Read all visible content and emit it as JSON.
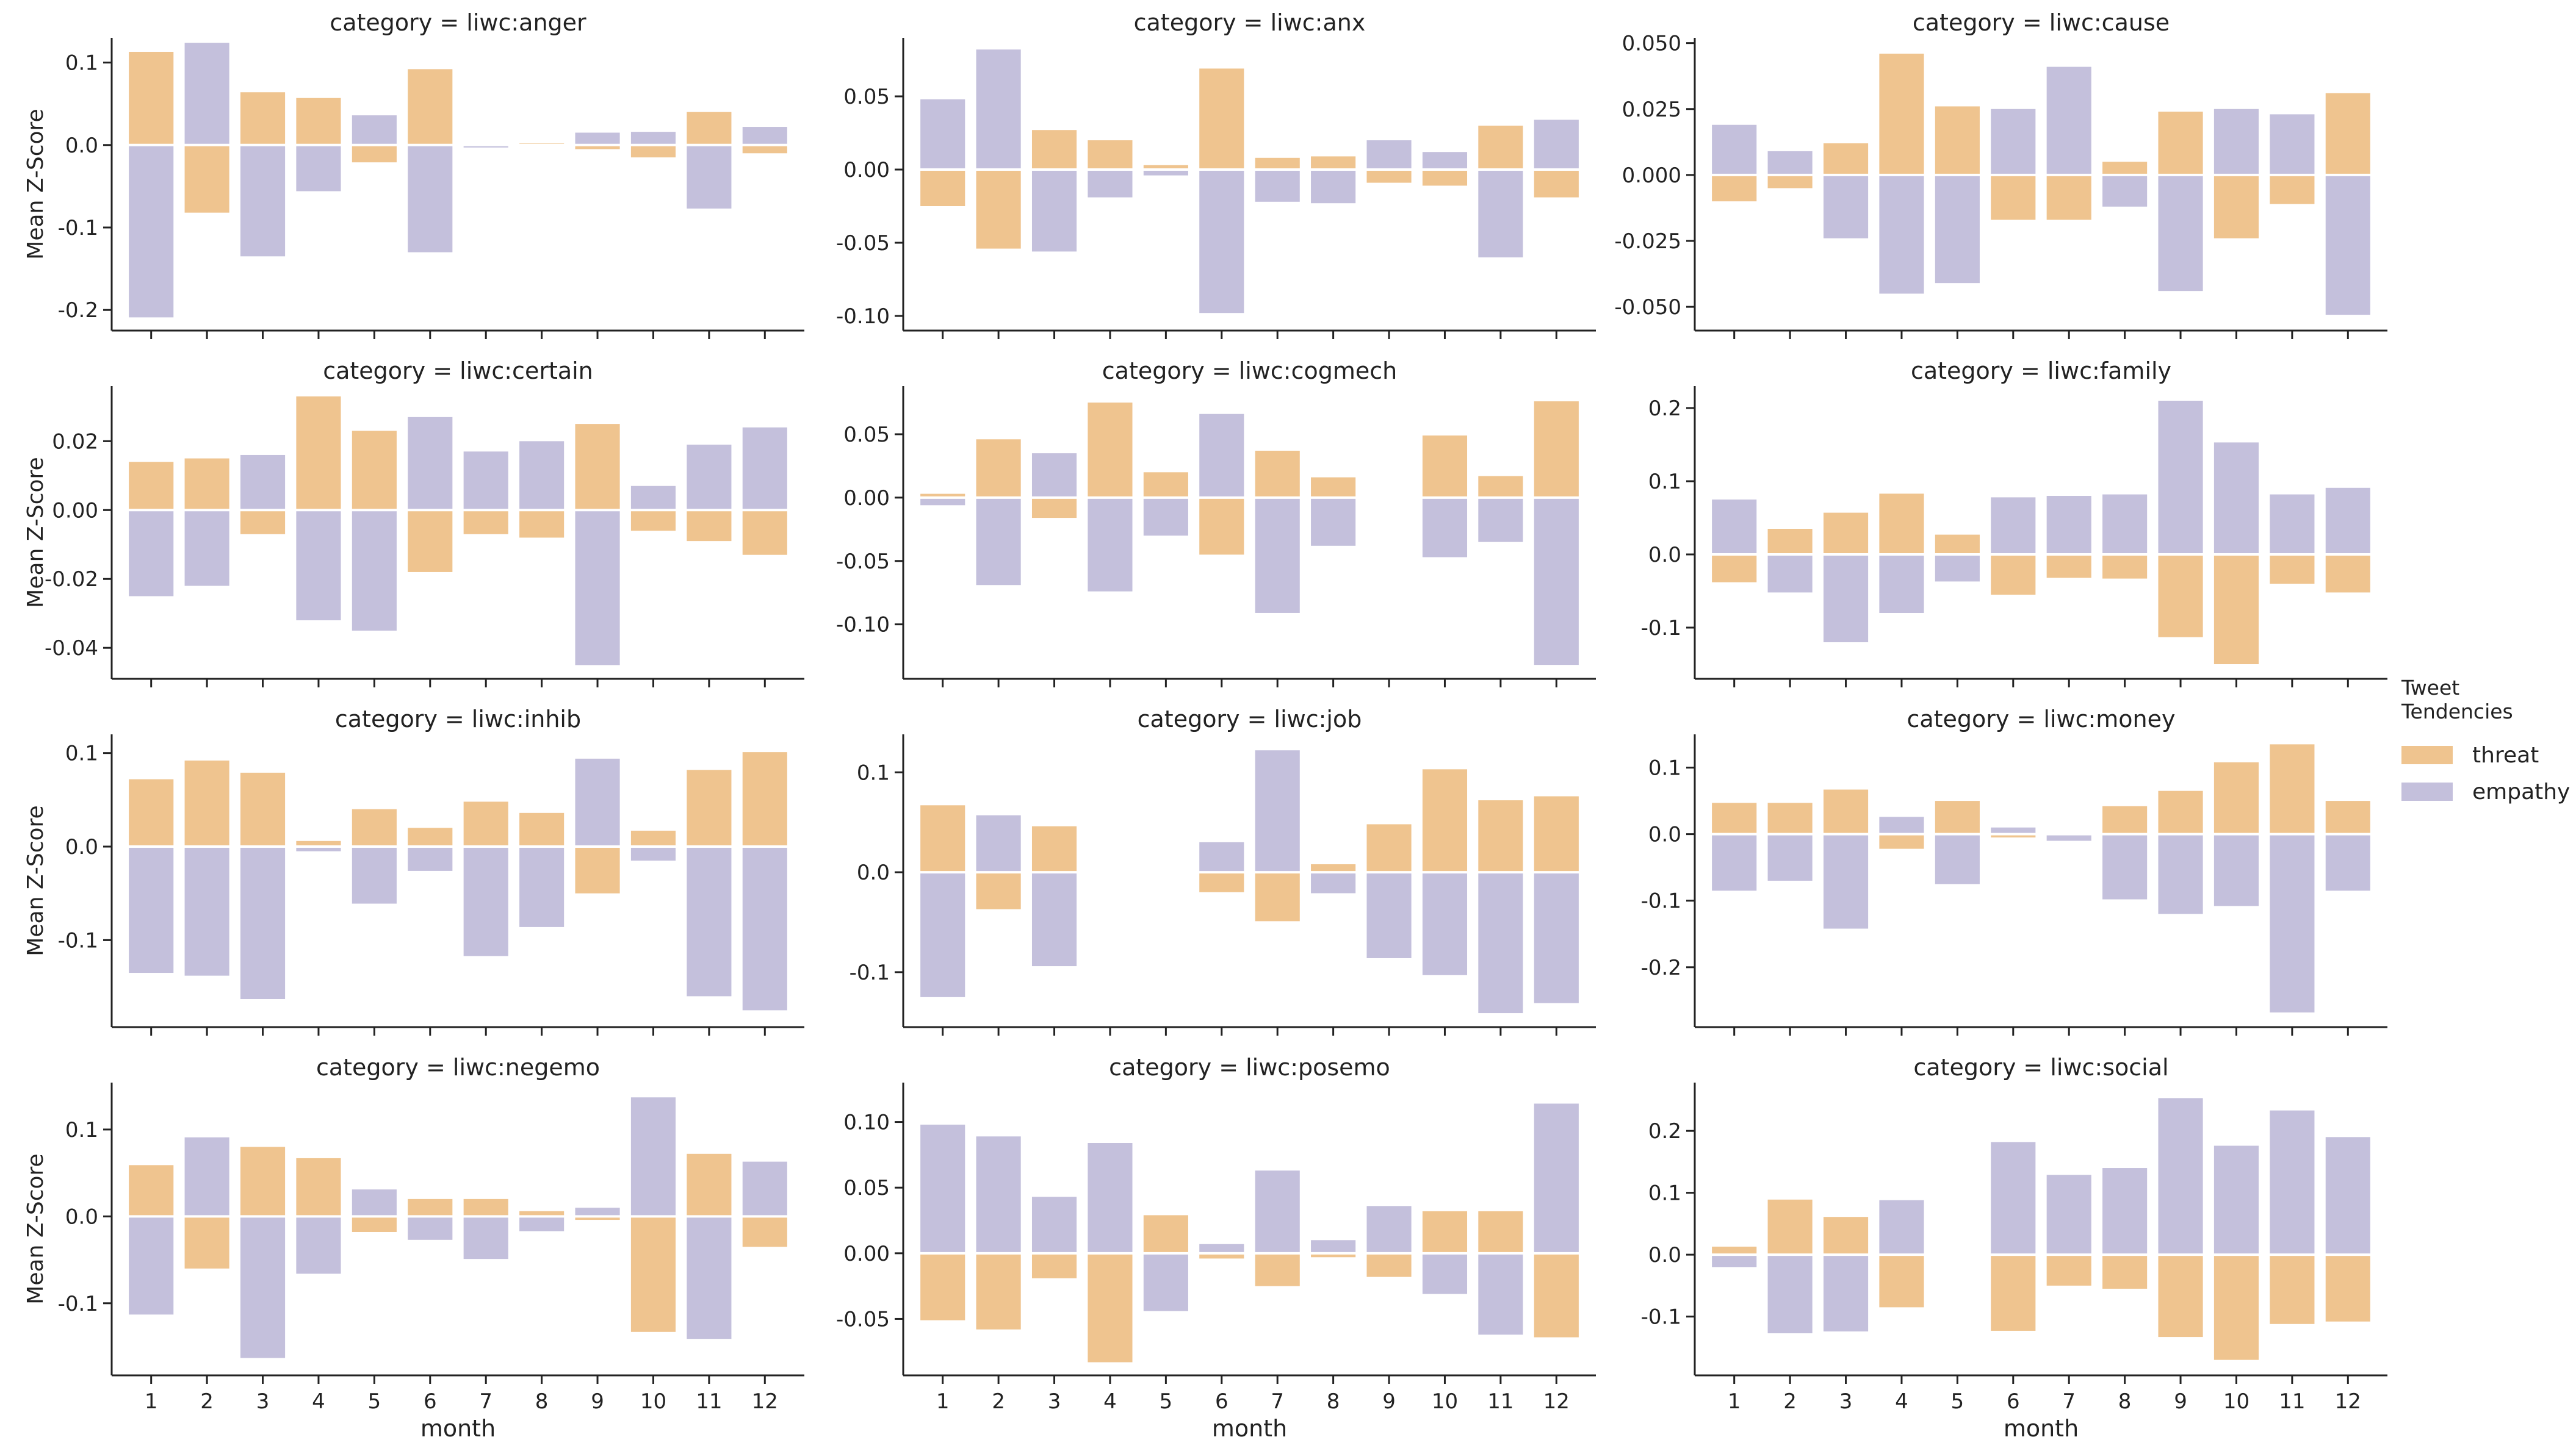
{
  "figure": {
    "ylabel": "Mean Z-Score",
    "xlabel": "month",
    "colors": {
      "threat": "#efc48f",
      "empathy": "#c4c0dc"
    }
  },
  "legend": {
    "title": "Tweet Tendencies",
    "items": [
      {
        "key": "threat",
        "label": "threat"
      },
      {
        "key": "empathy",
        "label": "empathy"
      }
    ]
  },
  "chart_data": [
    {
      "type": "bar",
      "title": "category = liwc:anger",
      "categories": [
        "1",
        "2",
        "3",
        "4",
        "5",
        "6",
        "7",
        "8",
        "9",
        "10",
        "11",
        "12"
      ],
      "ylim": [
        -0.225,
        0.13
      ],
      "yticks": [
        -0.2,
        -0.1,
        0.0,
        0.1
      ],
      "ytick_labels": [
        "-0.2",
        "-0.1",
        "0.0",
        "0.1"
      ],
      "series": [
        {
          "name": "threat",
          "values": [
            0.113,
            -0.082,
            0.064,
            0.057,
            -0.021,
            0.092,
            0,
            0.002,
            -0.005,
            -0.015,
            0.04,
            -0.01
          ]
        },
        {
          "name": "empathy",
          "values": [
            -0.209,
            0.124,
            -0.135,
            -0.056,
            0.036,
            -0.13,
            -0.003,
            0,
            0.015,
            0.016,
            -0.077,
            0.022
          ]
        }
      ]
    },
    {
      "type": "bar",
      "title": "category = liwc:anx",
      "categories": [
        "1",
        "2",
        "3",
        "4",
        "5",
        "6",
        "7",
        "8",
        "9",
        "10",
        "11",
        "12"
      ],
      "ylim": [
        -0.11,
        0.09
      ],
      "yticks": [
        -0.1,
        -0.05,
        0.0,
        0.05
      ],
      "ytick_labels": [
        "-0.10",
        "-0.05",
        "0.00",
        "0.05"
      ],
      "series": [
        {
          "name": "threat",
          "values": [
            -0.025,
            -0.054,
            0.027,
            0.02,
            0.003,
            0.069,
            0.008,
            0.009,
            -0.009,
            -0.011,
            0.03,
            -0.019
          ]
        },
        {
          "name": "empathy",
          "values": [
            0.048,
            0.082,
            -0.056,
            -0.019,
            -0.004,
            -0.098,
            -0.022,
            -0.023,
            0.02,
            0.012,
            -0.06,
            0.034
          ]
        }
      ]
    },
    {
      "type": "bar",
      "title": "category = liwc:cause",
      "categories": [
        "1",
        "2",
        "3",
        "4",
        "5",
        "6",
        "7",
        "8",
        "9",
        "10",
        "11",
        "12"
      ],
      "ylim": [
        -0.059,
        0.052
      ],
      "yticks": [
        -0.05,
        -0.025,
        0.0,
        0.025,
        0.05
      ],
      "ytick_labels": [
        "-0.050",
        "-0.025",
        "0.000",
        "0.025",
        "0.050"
      ],
      "series": [
        {
          "name": "threat",
          "values": [
            -0.01,
            -0.005,
            0.012,
            0.046,
            0.026,
            -0.017,
            -0.017,
            0.005,
            0.024,
            -0.024,
            -0.011,
            0.031
          ]
        },
        {
          "name": "empathy",
          "values": [
            0.019,
            0.009,
            -0.024,
            -0.045,
            -0.041,
            0.025,
            0.041,
            -0.012,
            -0.044,
            0.025,
            0.023,
            -0.053
          ]
        }
      ]
    },
    {
      "type": "bar",
      "title": "category = liwc:certain",
      "categories": [
        "1",
        "2",
        "3",
        "4",
        "5",
        "6",
        "7",
        "8",
        "9",
        "10",
        "11",
        "12"
      ],
      "ylim": [
        -0.049,
        0.036
      ],
      "yticks": [
        -0.04,
        -0.02,
        0.0,
        0.02
      ],
      "ytick_labels": [
        "-0.04",
        "-0.02",
        "0.00",
        "0.02"
      ],
      "series": [
        {
          "name": "threat",
          "values": [
            0.014,
            0.015,
            -0.007,
            0.033,
            0.023,
            -0.018,
            -0.007,
            -0.008,
            0.025,
            -0.006,
            -0.009,
            -0.013
          ]
        },
        {
          "name": "empathy",
          "values": [
            -0.025,
            -0.022,
            0.016,
            -0.032,
            -0.035,
            0.027,
            0.017,
            0.02,
            -0.045,
            0.007,
            0.019,
            0.024
          ]
        }
      ]
    },
    {
      "type": "bar",
      "title": "category = liwc:cogmech",
      "categories": [
        "1",
        "2",
        "3",
        "4",
        "5",
        "6",
        "7",
        "8",
        "9",
        "10",
        "11",
        "12"
      ],
      "ylim": [
        -0.143,
        0.088
      ],
      "yticks": [
        -0.1,
        -0.05,
        0.0,
        0.05
      ],
      "ytick_labels": [
        "-0.10",
        "-0.05",
        "0.00",
        "0.05"
      ],
      "series": [
        {
          "name": "threat",
          "values": [
            0.003,
            0.046,
            -0.016,
            0.075,
            0.02,
            -0.045,
            0.037,
            0.016,
            0,
            0.049,
            0.017,
            0.076
          ]
        },
        {
          "name": "empathy",
          "values": [
            -0.006,
            -0.069,
            0.035,
            -0.074,
            -0.03,
            0.066,
            -0.091,
            -0.038,
            0,
            -0.047,
            -0.035,
            -0.132
          ]
        }
      ]
    },
    {
      "type": "bar",
      "title": "category = liwc:family",
      "categories": [
        "1",
        "2",
        "3",
        "4",
        "5",
        "6",
        "7",
        "8",
        "9",
        "10",
        "11",
        "12"
      ],
      "ylim": [
        -0.17,
        0.23
      ],
      "yticks": [
        -0.1,
        0.0,
        0.1,
        0.2
      ],
      "ytick_labels": [
        "-0.1",
        "0.0",
        "0.1",
        "0.2"
      ],
      "series": [
        {
          "name": "threat",
          "values": [
            -0.038,
            0.035,
            0.057,
            0.083,
            0.027,
            -0.055,
            -0.032,
            -0.033,
            -0.113,
            -0.15,
            -0.04,
            -0.052
          ]
        },
        {
          "name": "empathy",
          "values": [
            0.075,
            -0.052,
            -0.12,
            -0.08,
            -0.037,
            0.078,
            0.08,
            0.082,
            0.21,
            0.153,
            0.082,
            0.091
          ]
        }
      ]
    },
    {
      "type": "bar",
      "title": "category = liwc:inhib",
      "categories": [
        "1",
        "2",
        "3",
        "4",
        "5",
        "6",
        "7",
        "8",
        "9",
        "10",
        "11",
        "12"
      ],
      "ylim": [
        -0.193,
        0.12
      ],
      "yticks": [
        -0.1,
        0.0,
        0.1
      ],
      "ytick_labels": [
        "-0.1",
        "0.0",
        "0.1"
      ],
      "series": [
        {
          "name": "threat",
          "values": [
            0.072,
            0.092,
            0.079,
            0.006,
            0.04,
            0.02,
            0.048,
            0.036,
            -0.05,
            0.017,
            0.082,
            0.101
          ]
        },
        {
          "name": "empathy",
          "values": [
            -0.135,
            -0.138,
            -0.163,
            -0.005,
            -0.061,
            -0.026,
            -0.117,
            -0.086,
            0.094,
            -0.015,
            -0.16,
            -0.175
          ]
        }
      ]
    },
    {
      "type": "bar",
      "title": "category = liwc:job",
      "categories": [
        "1",
        "2",
        "3",
        "4",
        "5",
        "6",
        "7",
        "8",
        "9",
        "10",
        "11",
        "12"
      ],
      "ylim": [
        -0.155,
        0.138
      ],
      "yticks": [
        -0.1,
        0.0,
        0.1
      ],
      "ytick_labels": [
        "-0.1",
        "0.0",
        "0.1"
      ],
      "series": [
        {
          "name": "threat",
          "values": [
            0.067,
            -0.037,
            0.046,
            0,
            0,
            -0.02,
            -0.049,
            0.008,
            0.048,
            0.103,
            0.072,
            0.076
          ]
        },
        {
          "name": "empathy",
          "values": [
            -0.125,
            0.057,
            -0.094,
            0,
            0,
            0.03,
            0.122,
            -0.021,
            -0.086,
            -0.103,
            -0.141,
            -0.131
          ]
        }
      ]
    },
    {
      "type": "bar",
      "title": "category = liwc:money",
      "categories": [
        "1",
        "2",
        "3",
        "4",
        "5",
        "6",
        "7",
        "8",
        "9",
        "10",
        "11",
        "12"
      ],
      "ylim": [
        -0.29,
        0.15
      ],
      "yticks": [
        -0.2,
        -0.1,
        0.0,
        0.1
      ],
      "ytick_labels": [
        "-0.2",
        "-0.1",
        "0.0",
        "0.1"
      ],
      "series": [
        {
          "name": "threat",
          "values": [
            0.047,
            0.047,
            0.067,
            -0.022,
            0.05,
            -0.005,
            0,
            0.042,
            0.065,
            0.108,
            0.135,
            0.05
          ]
        },
        {
          "name": "empathy",
          "values": [
            -0.085,
            -0.07,
            -0.142,
            0.026,
            -0.075,
            0.01,
            -0.01,
            -0.098,
            -0.12,
            -0.108,
            -0.268,
            -0.085
          ]
        }
      ]
    },
    {
      "type": "bar",
      "title": "category = liwc:negemo",
      "categories": [
        "1",
        "2",
        "3",
        "4",
        "5",
        "6",
        "7",
        "8",
        "9",
        "10",
        "11",
        "12"
      ],
      "ylim": [
        -0.183,
        0.154
      ],
      "yticks": [
        -0.1,
        0.0,
        0.1
      ],
      "ytick_labels": [
        "-0.1",
        "0.0",
        "0.1"
      ],
      "series": [
        {
          "name": "threat",
          "values": [
            0.059,
            -0.06,
            0.08,
            0.067,
            -0.018,
            0.02,
            0.02,
            0.006,
            -0.004,
            -0.133,
            0.072,
            -0.035
          ]
        },
        {
          "name": "empathy",
          "values": [
            -0.113,
            0.091,
            -0.163,
            -0.066,
            0.031,
            -0.027,
            -0.049,
            -0.017,
            0.01,
            0.137,
            -0.141,
            0.063
          ]
        }
      ]
    },
    {
      "type": "bar",
      "title": "category = liwc:posemo",
      "categories": [
        "1",
        "2",
        "3",
        "4",
        "5",
        "6",
        "7",
        "8",
        "9",
        "10",
        "11",
        "12"
      ],
      "ylim": [
        -0.093,
        0.13
      ],
      "yticks": [
        -0.05,
        0.0,
        0.05,
        0.1
      ],
      "ytick_labels": [
        "-0.05",
        "0.00",
        "0.05",
        "0.10"
      ],
      "series": [
        {
          "name": "threat",
          "values": [
            -0.051,
            -0.058,
            -0.019,
            -0.083,
            0.029,
            -0.004,
            -0.025,
            -0.003,
            -0.018,
            0.032,
            0.032,
            -0.064
          ]
        },
        {
          "name": "empathy",
          "values": [
            0.098,
            0.089,
            0.043,
            0.084,
            -0.044,
            0.007,
            0.063,
            0.01,
            0.036,
            -0.031,
            -0.062,
            0.114
          ]
        }
      ]
    },
    {
      "type": "bar",
      "title": "category = liwc:social",
      "categories": [
        "1",
        "2",
        "3",
        "4",
        "5",
        "6",
        "7",
        "8",
        "9",
        "10",
        "11",
        "12"
      ],
      "ylim": [
        -0.195,
        0.278
      ],
      "yticks": [
        -0.1,
        0.0,
        0.1,
        0.2
      ],
      "ytick_labels": [
        "-0.1",
        "0.0",
        "0.1",
        "0.2"
      ],
      "series": [
        {
          "name": "threat",
          "values": [
            0.013,
            0.089,
            0.061,
            -0.085,
            0,
            -0.123,
            -0.05,
            -0.055,
            -0.133,
            -0.17,
            -0.112,
            -0.108
          ]
        },
        {
          "name": "empathy",
          "values": [
            -0.02,
            -0.127,
            -0.124,
            0.088,
            0,
            0.182,
            0.129,
            0.14,
            0.253,
            0.176,
            0.233,
            0.19
          ]
        }
      ]
    }
  ]
}
